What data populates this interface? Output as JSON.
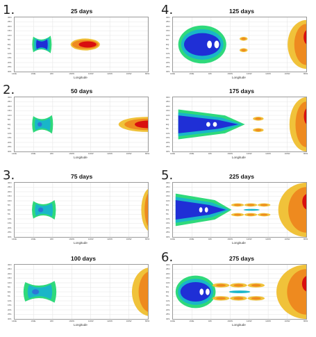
{
  "chart_data": [
    {
      "type": "heatmap",
      "number": "1.",
      "title": "25 days",
      "xlabel": "Longitude",
      "blobs": [
        {
          "kind": "blue_bowtie",
          "x": 0.14,
          "y": 0.5,
          "len": 0.13,
          "h": 0.32
        },
        {
          "kind": "red_jet",
          "x": 0.42,
          "y": 0.5,
          "len": 0.22,
          "h": 0.22
        }
      ]
    },
    {
      "type": "heatmap",
      "number": "2.",
      "title": "50 days",
      "xlabel": "Longitude",
      "blobs": [
        {
          "kind": "green_bowtie",
          "x": 0.14,
          "y": 0.5,
          "len": 0.14,
          "h": 0.34
        },
        {
          "kind": "red_edge",
          "x": 0.78,
          "y": 0.5,
          "len": 0.22,
          "h": 0.28
        }
      ]
    },
    {
      "type": "heatmap",
      "number": "3.",
      "title": "75 days",
      "xlabel": "Longitude",
      "blobs": [
        {
          "kind": "green_bowtie",
          "x": 0.14,
          "y": 0.5,
          "len": 0.16,
          "h": 0.36
        },
        {
          "kind": "orange_edge",
          "x": 0.92,
          "y": 0.5,
          "len": 0.1,
          "h": 0.8
        }
      ]
    },
    {
      "type": "heatmap",
      "number": "",
      "title": "100 days",
      "xlabel": "Longitude",
      "blobs": [
        {
          "kind": "green_bowtie",
          "x": 0.08,
          "y": 0.5,
          "len": 0.22,
          "h": 0.4
        },
        {
          "kind": "orange_edge",
          "x": 0.82,
          "y": 0.5,
          "len": 0.2,
          "h": 0.9
        }
      ]
    },
    {
      "type": "heatmap",
      "number": "4.",
      "title": "125 days",
      "xlabel": "Longitude",
      "blobs": [
        {
          "kind": "big_blue",
          "x": 0.04,
          "y": 0.5,
          "len": 0.36,
          "h": 0.7
        },
        {
          "kind": "orange_pair",
          "x": 0.5,
          "y": 0.5,
          "len": 0.06,
          "h": 0.3
        },
        {
          "kind": "orange_edge",
          "x": 0.8,
          "y": 0.5,
          "len": 0.2,
          "h": 0.9
        }
      ]
    },
    {
      "type": "heatmap",
      "number": "",
      "title": "175 days",
      "xlabel": "Longitude",
      "blobs": [
        {
          "kind": "blue_wedge",
          "x": 0.04,
          "y": 0.5,
          "len": 0.5,
          "h": 0.55
        },
        {
          "kind": "orange_pair",
          "x": 0.6,
          "y": 0.5,
          "len": 0.08,
          "h": 0.3
        },
        {
          "kind": "orange_edge",
          "x": 0.82,
          "y": 0.5,
          "len": 0.18,
          "h": 1.0
        }
      ]
    },
    {
      "type": "heatmap",
      "number": "5.",
      "title": "225 days",
      "xlabel": "Longitude",
      "blobs": [
        {
          "kind": "blue_wedge",
          "x": 0.02,
          "y": 0.5,
          "len": 0.42,
          "h": 0.6
        },
        {
          "kind": "orange_chain",
          "x": 0.44,
          "y": 0.5,
          "len": 0.3,
          "h": 0.3
        },
        {
          "kind": "orange_edge",
          "x": 0.7,
          "y": 0.5,
          "len": 0.3,
          "h": 1.0
        }
      ]
    },
    {
      "type": "heatmap",
      "number": "6.",
      "title": "275 days",
      "xlabel": "Longitude",
      "blobs": [
        {
          "kind": "big_blue",
          "x": 0.02,
          "y": 0.5,
          "len": 0.3,
          "h": 0.6
        },
        {
          "kind": "orange_chain",
          "x": 0.3,
          "y": 0.5,
          "len": 0.4,
          "h": 0.4
        },
        {
          "kind": "orange_edge",
          "x": 0.68,
          "y": 0.5,
          "len": 0.32,
          "h": 1.0
        }
      ]
    }
  ],
  "yticks": [
    "30N",
    "25N",
    "20N",
    "15N",
    "10N",
    "5N",
    "EQ",
    "5S",
    "10S",
    "15S",
    "20S",
    "25S",
    "30S"
  ],
  "xticks": [
    "140E",
    "160E",
    "180",
    "160W",
    "140W",
    "120W",
    "100W",
    "80W"
  ],
  "colors": {
    "blue": "#1f2fd6",
    "cyan": "#19b6c8",
    "green": "#2fd97b",
    "yellow": "#f0c23a",
    "orange": "#ee8a1f",
    "red": "#d90f0f",
    "grid": "#e6e6e6"
  }
}
